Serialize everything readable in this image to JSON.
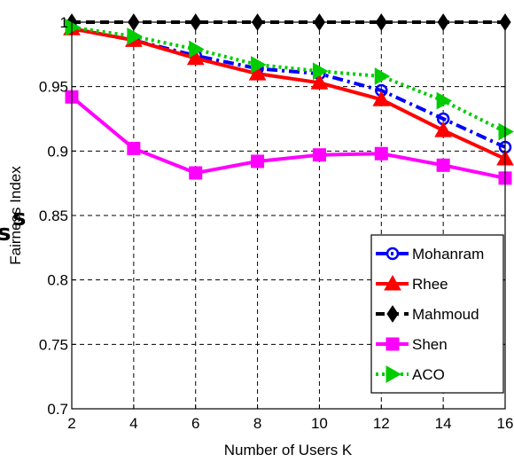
{
  "chart_data": {
    "type": "line",
    "title": "",
    "xlabel": "Number of Users K",
    "ylabel": "Fairness Index",
    "overlay_text": "s",
    "x": [
      2,
      4,
      6,
      8,
      10,
      12,
      14,
      16
    ],
    "xticks": [
      "2",
      "4",
      "6",
      "8",
      "10",
      "12",
      "14",
      "16"
    ],
    "yticks": [
      "0.7",
      "0.75",
      "0.8",
      "0.85",
      "0.9",
      "0.95",
      "1"
    ],
    "xlim": [
      2,
      16
    ],
    "ylim": [
      0.7,
      1.0
    ],
    "grid": true,
    "legend_position": "bottom-right",
    "series": [
      {
        "name": "Mohanram",
        "color": "#0000ff",
        "line_style": "dash-dot",
        "marker": "circle",
        "values": [
          0.995,
          0.986,
          0.974,
          0.964,
          0.96,
          0.947,
          0.925,
          0.903
        ]
      },
      {
        "name": "Rhee",
        "color": "#ff0000",
        "line_style": "solid",
        "marker": "triangle-up",
        "values": [
          0.995,
          0.986,
          0.972,
          0.96,
          0.953,
          0.94,
          0.916,
          0.894
        ]
      },
      {
        "name": "Mahmoud",
        "color": "#000000",
        "line_style": "dashed",
        "marker": "diamond",
        "values": [
          1.0,
          1.0,
          1.0,
          1.0,
          1.0,
          1.0,
          1.0,
          1.0
        ]
      },
      {
        "name": "Shen",
        "color": "#ff00ff",
        "line_style": "solid",
        "marker": "square",
        "values": [
          0.942,
          0.902,
          0.883,
          0.892,
          0.897,
          0.898,
          0.889,
          0.879
        ]
      },
      {
        "name": "ACO",
        "color": "#00cc00",
        "line_style": "dotted",
        "marker": "triangle-right",
        "values": [
          0.996,
          0.989,
          0.979,
          0.967,
          0.962,
          0.958,
          0.939,
          0.915
        ]
      }
    ]
  }
}
